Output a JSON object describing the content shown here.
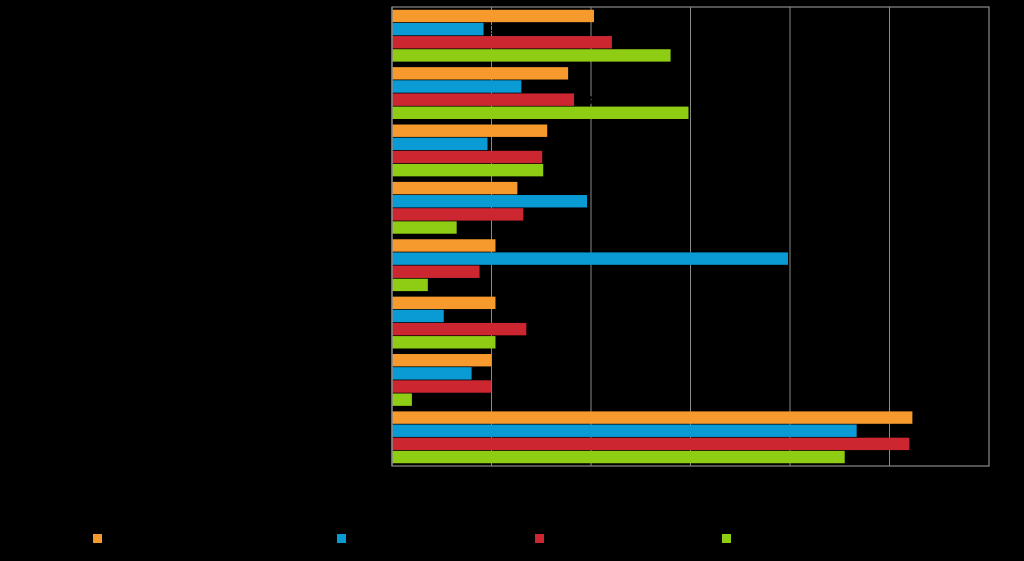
{
  "chart_data": {
    "type": "bar",
    "orientation": "horizontal",
    "title": "",
    "xlabel": "",
    "ylabel": "",
    "xlim": [
      0,
      60
    ],
    "xticks": [
      0,
      10,
      20,
      30,
      40,
      50,
      60
    ],
    "grid": true,
    "legend_position": "bottom",
    "categories": [
      "",
      "",
      "",
      "",
      "",
      "",
      "",
      ""
    ],
    "series": [
      {
        "name": "",
        "color": "#F79A2E",
        "values": [
          20.3,
          17.7,
          15.6,
          12.6,
          10.4,
          10.4,
          10.0,
          52.3
        ]
      },
      {
        "name": "",
        "color": "#0A9BD5",
        "values": [
          9.2,
          13.0,
          9.6,
          19.6,
          39.8,
          5.2,
          8.0,
          46.7
        ]
      },
      {
        "name": "",
        "color": "#CC2631",
        "values": [
          22.1,
          18.3,
          15.1,
          13.2,
          8.8,
          13.5,
          10.0,
          52.0
        ]
      },
      {
        "name": "",
        "color": "#8FCC14",
        "values": [
          28.0,
          29.8,
          15.2,
          6.5,
          3.6,
          10.4,
          2.0,
          45.5
        ]
      }
    ],
    "data_labels": [
      [
        "20",
        "9",
        "22",
        "28"
      ],
      [
        "18",
        "13",
        "18",
        "30"
      ],
      [
        "16",
        "10",
        "15",
        "15"
      ],
      [
        "13",
        "20",
        "13",
        "7"
      ],
      [
        "10",
        "40",
        "9",
        "4"
      ],
      [
        "10",
        "5",
        "13",
        "10"
      ],
      [
        "10",
        "8",
        "10",
        "2"
      ],
      [
        "52",
        "47",
        "52",
        "46"
      ]
    ]
  }
}
